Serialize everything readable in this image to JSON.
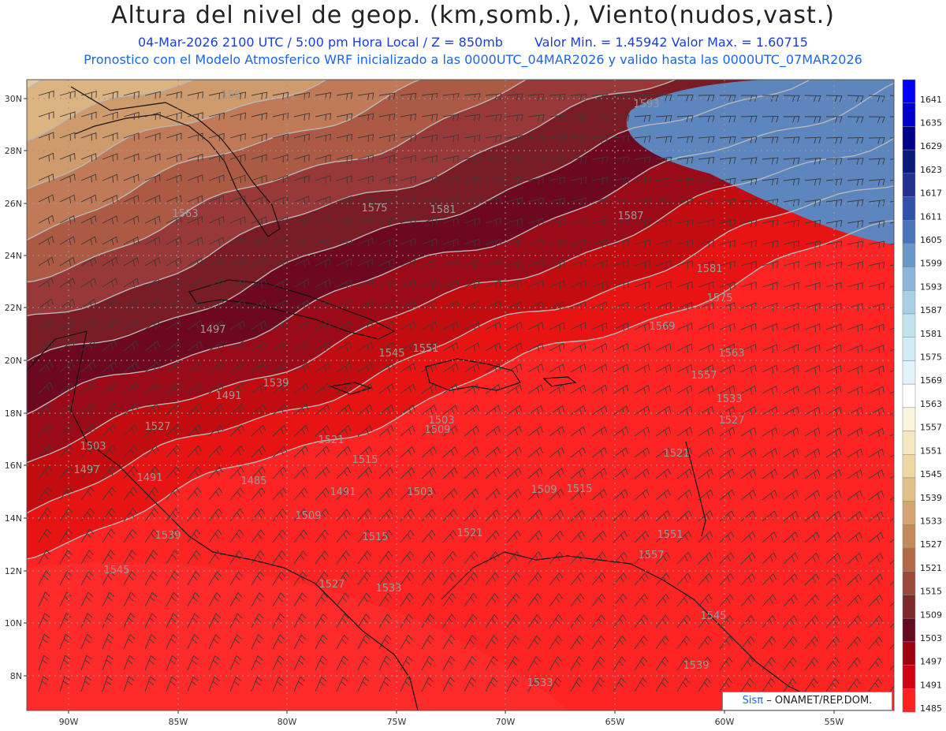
{
  "title": "Altura del nivel de geop. (km,somb.), Viento(nudos,vast.)",
  "subtitle_date": "04-Mar-2026  2100 UTC / 5:00 pm Hora Local / Z = 850mb",
  "subtitle_minmax": "Valor Min. = 1.45942  Valor Max. = 1.60715",
  "subtitle_model": "Pronostico con el Modelo Atmosferico WRF inicializado a las 0000UTC_04MAR2026 y valido hasta las  0000UTC_07MAR2026",
  "credit": {
    "logo": "Sisπ",
    "text": "– ONAMET/REP.DOM."
  },
  "map": {
    "lat_labels": [
      "30N",
      "28N",
      "26N",
      "24N",
      "22N",
      "20N",
      "18N",
      "16N",
      "14N",
      "12N",
      "10N",
      "8N"
    ],
    "lon_labels": [
      "90W",
      "85W",
      "80W",
      "75W",
      "70W",
      "65W",
      "60W",
      "55W"
    ],
    "contour_labels": [
      "158",
      "1593",
      "1563",
      "1575",
      "1581",
      "1587",
      "1581",
      "1575",
      "1569",
      "1563",
      "1557",
      "1551",
      "1545",
      "1539",
      "1533",
      "1527",
      "1521",
      "1515",
      "1509",
      "1503",
      "1497",
      "1491",
      "1485",
      "1491",
      "1503",
      "1509",
      "1515",
      "1521",
      "1527",
      "1533",
      "1539",
      "1545",
      "1551",
      "1557",
      "1545",
      "1539",
      "1533",
      "1527",
      "1521",
      "1515",
      "1509",
      "1503",
      "1497",
      "1491"
    ]
  },
  "legend": {
    "levels": [
      "1641",
      "1635",
      "1629",
      "1623",
      "1617",
      "1611",
      "1605",
      "1599",
      "1593",
      "1587",
      "1581",
      "1575",
      "1569",
      "1563",
      "1557",
      "1551",
      "1545",
      "1539",
      "1533",
      "1527",
      "1521",
      "1515",
      "1509",
      "1503",
      "1497",
      "1491",
      "1485"
    ],
    "colors": [
      "#0000ff",
      "#0000cc",
      "#00008b",
      "#0a1a7a",
      "#23318f",
      "#3052a8",
      "#4a74b8",
      "#6a96c8",
      "#8cb6d8",
      "#a8d0e4",
      "#c2e2ee",
      "#d2ecf4",
      "#e2f4fa",
      "#ffffff",
      "#fbf4dc",
      "#f5e7c0",
      "#eed7a2",
      "#e2c08a",
      "#d4a572",
      "#c48a5a",
      "#b06a48",
      "#9a4a3a",
      "#7d2a2e",
      "#620a20",
      "#a00010",
      "#d00010",
      "#ff2020"
    ]
  }
}
